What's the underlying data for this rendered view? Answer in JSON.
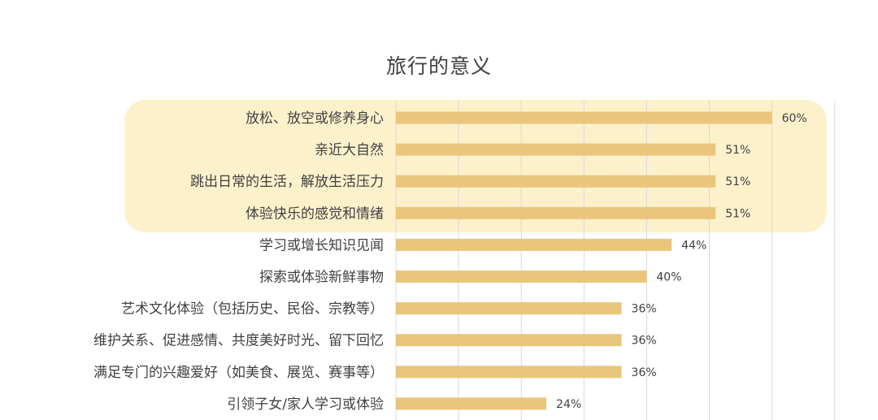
{
  "chart_data": {
    "type": "bar",
    "orientation": "horizontal",
    "title": "旅行的意义",
    "categories": [
      "放松、放空或修养身心",
      "亲近大自然",
      "跳出日常的生活，解放生活压力",
      "体验快乐的感觉和情绪",
      "学习或增长知识见闻",
      "探索或体验新鲜事物",
      "艺术文化体验（包括历史、民俗、宗教等）",
      "维护关系、促进感情、共度美好时光、留下回忆",
      "满足专门的兴趣爱好（如美食、展览、赛事等）",
      "引领子女/家人学习或体验"
    ],
    "values": [
      60,
      51,
      51,
      51,
      44,
      40,
      36,
      36,
      36,
      24
    ],
    "value_labels": [
      "60%",
      "51%",
      "51%",
      "51%",
      "44%",
      "40%",
      "36%",
      "36%",
      "36%",
      "24%"
    ],
    "xlim": [
      0,
      70
    ],
    "gridlines": [
      0,
      10,
      20,
      30,
      40,
      50,
      60,
      70
    ],
    "grid": true,
    "highlighted_categories": [
      0,
      1,
      2,
      3
    ],
    "colors": {
      "bar": "#e9c67b",
      "highlight": "#fdf1cc",
      "grid": "#d9d9d9",
      "text": "#404040"
    }
  }
}
